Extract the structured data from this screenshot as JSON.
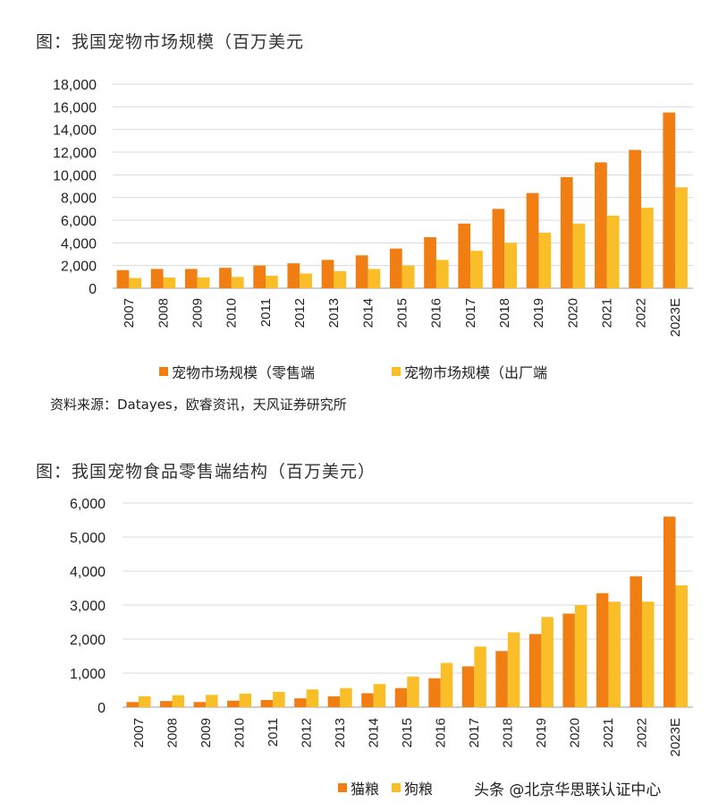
{
  "chart_data": [
    {
      "type": "bar",
      "title": "图：我国宠物市场规模（百万美元",
      "categories": [
        "2007",
        "2008",
        "2009",
        "2010",
        "2011",
        "2012",
        "2013",
        "2014",
        "2015",
        "2016",
        "2017",
        "2018",
        "2019",
        "2020",
        "2021",
        "2022",
        "2023E"
      ],
      "series": [
        {
          "name": "宠物市场规模（零售端",
          "values": [
            1600,
            1700,
            1700,
            1800,
            2000,
            2200,
            2500,
            2900,
            3500,
            4500,
            5700,
            7000,
            8400,
            9800,
            11100,
            12200,
            15500
          ]
        },
        {
          "name": "宠物市场规模（出厂端",
          "values": [
            900,
            950,
            950,
            1000,
            1100,
            1300,
            1500,
            1700,
            2000,
            2500,
            3300,
            4000,
            4900,
            5700,
            6400,
            7100,
            8900
          ]
        }
      ],
      "ylim": [
        0,
        18000
      ],
      "yticks": [
        "18,000",
        "16,000",
        "14,000",
        "12,000",
        "10,000",
        "8,000",
        "6,000",
        "4,000",
        "2,000",
        "0"
      ],
      "grid": true,
      "legend": "bottom",
      "source": "资料来源：Datayes，欧睿资讯，天风证券研究所"
    },
    {
      "type": "bar",
      "title": "图：我国宠物食品零售端结构（百万美元）",
      "categories": [
        "2007",
        "2008",
        "2009",
        "2010",
        "2011",
        "2012",
        "2013",
        "2014",
        "2015",
        "2016",
        "2017",
        "2018",
        "2019",
        "2020",
        "2021",
        "2022",
        "2023E"
      ],
      "series": [
        {
          "name": "猫粮",
          "values": [
            150,
            180,
            150,
            190,
            210,
            260,
            320,
            410,
            560,
            850,
            1200,
            1650,
            2150,
            2750,
            3350,
            3850,
            5600
          ]
        },
        {
          "name": "狗粮",
          "values": [
            320,
            350,
            360,
            400,
            450,
            520,
            560,
            680,
            900,
            1300,
            1780,
            2200,
            2650,
            3000,
            3100,
            3100,
            3580
          ]
        }
      ],
      "ylim": [
        0,
        6000
      ],
      "yticks": [
        "6,000",
        "5,000",
        "4,000",
        "3,000",
        "2,000",
        "1,000",
        "0"
      ],
      "grid": true,
      "legend": "bottom"
    }
  ],
  "colors": {
    "retail": "#F07E12",
    "factory": "#F9BE28",
    "grid": "#D9D9D9",
    "axis": "#BFBFBF"
  },
  "watermark": "头条 @北京华思联认证中心"
}
